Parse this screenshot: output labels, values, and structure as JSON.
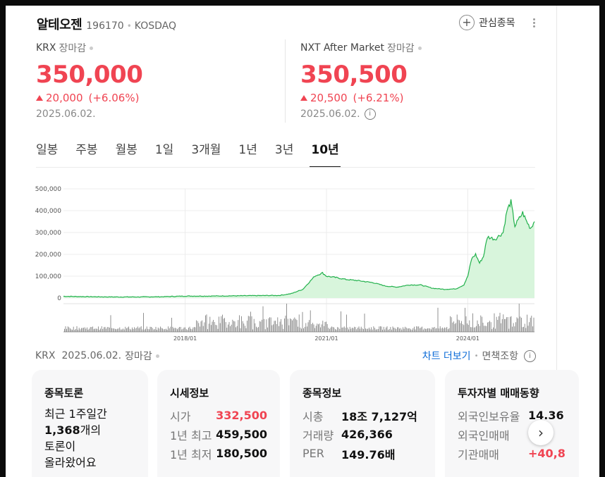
{
  "header": {
    "name": "알테오젠",
    "code": "196170",
    "market": "KOSDAQ",
    "fav_label": "관심종목"
  },
  "krx": {
    "label": "KRX",
    "status": "장마감",
    "price": "350,000",
    "change": "20,000",
    "change_pct": "(+6.06%)",
    "date": "2025.06.02."
  },
  "nxt": {
    "label": "NXT After Market",
    "status": "장마감",
    "price": "350,500",
    "change": "20,500",
    "change_pct": "(+6.21%)",
    "date": "2025.06.02."
  },
  "tabs": [
    "일봉",
    "주봉",
    "월봉",
    "1일",
    "3개월",
    "1년",
    "3년",
    "10년"
  ],
  "active_tab": "10년",
  "chart_data": {
    "type": "area",
    "color": "#22b14c",
    "fill": "#d8f5dc",
    "y_ticks": [
      "500,000",
      "400,000",
      "300,000",
      "200,000",
      "100,000",
      "0"
    ],
    "ylim": [
      0,
      500000
    ],
    "x_ticks": [
      "2018/01",
      "2021/01",
      "2024/01"
    ],
    "x": [
      "2015/06",
      "2016/01",
      "2016/07",
      "2017/01",
      "2017/07",
      "2018/01",
      "2018/07",
      "2019/01",
      "2019/07",
      "2020/01",
      "2020/04",
      "2020/07",
      "2020/10",
      "2020/12",
      "2021/01",
      "2021/03",
      "2021/06",
      "2021/09",
      "2022/01",
      "2022/04",
      "2022/07",
      "2022/10",
      "2023/01",
      "2023/04",
      "2023/07",
      "2023/10",
      "2023/12",
      "2024/01",
      "2024/02",
      "2024/03",
      "2024/04",
      "2024/05",
      "2024/06",
      "2024/08",
      "2024/10",
      "2024/11",
      "2024/12",
      "2025/01",
      "2025/03",
      "2025/04",
      "2025/05",
      "2025/06"
    ],
    "y": [
      8000,
      6000,
      5000,
      5000,
      6000,
      9000,
      9000,
      10000,
      11000,
      12000,
      20000,
      40000,
      100000,
      115000,
      100000,
      95000,
      85000,
      80000,
      70000,
      55000,
      50000,
      60000,
      60000,
      45000,
      40000,
      42000,
      60000,
      100000,
      180000,
      200000,
      160000,
      190000,
      280000,
      270000,
      300000,
      400000,
      440000,
      330000,
      390000,
      350000,
      320000,
      350000
    ],
    "volume": "bars"
  },
  "footer": {
    "market": "KRX",
    "date": "2025.06.02.",
    "status": "장마감",
    "chart_more": "차트 더보기",
    "disclaimer": "면책조항"
  },
  "cards": {
    "discussion": {
      "title": "종목토론",
      "line1": "최근 1주일간",
      "count": "1,368",
      "count_suffix": "개의",
      "line3": "토론이",
      "line4": "올라왔어요"
    },
    "price_info": {
      "title": "시세정보",
      "rows": [
        {
          "k": "시가",
          "v": "332,500"
        },
        {
          "k": "1년 최고",
          "v": "459,500"
        },
        {
          "k": "1년 최저",
          "v": "180,500"
        }
      ]
    },
    "stock_info": {
      "title": "종목정보",
      "rows": [
        {
          "k": "시총",
          "v": "18조 7,127억"
        },
        {
          "k": "거래량",
          "v": "426,366"
        },
        {
          "k": "PER",
          "v": "149.76배"
        }
      ]
    },
    "investor": {
      "title": "투자자별 매매동향",
      "rows": [
        {
          "k": "외국인보유율",
          "v": "14.36"
        },
        {
          "k": "외국인매매",
          "v": "-"
        },
        {
          "k": "기관매매",
          "v": "+40,8"
        }
      ]
    }
  }
}
